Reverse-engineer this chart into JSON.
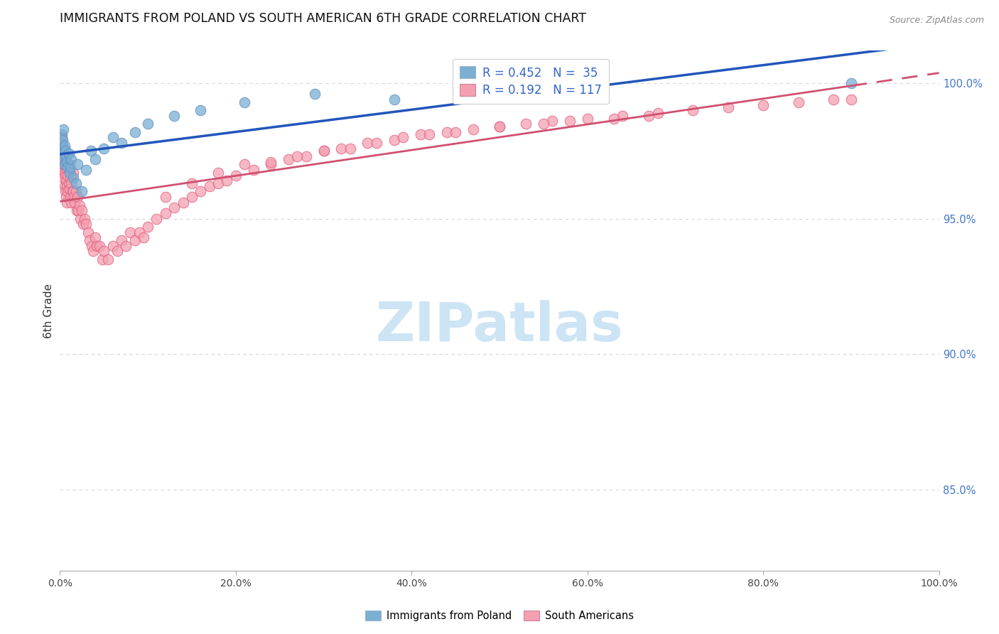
{
  "title": "IMMIGRANTS FROM POLAND VS SOUTH AMERICAN 6TH GRADE CORRELATION CHART",
  "source": "Source: ZipAtlas.com",
  "ylabel": "6th Grade",
  "poland_color": "#7bafd4",
  "poland_edge_color": "#6090c0",
  "south_color": "#f4a0b0",
  "south_edge_color": "#e06080",
  "poland_label": "Immigrants from Poland",
  "south_label": "South Americans",
  "poland_R": 0.452,
  "poland_N": 35,
  "south_R": 0.192,
  "south_N": 117,
  "legend_color": "#3366cc",
  "line_blue": "#2255bb",
  "line_pink": "#d05070",
  "bg_color": "#ffffff",
  "grid_color": "#cccccc",
  "watermark_text": "ZIPatlas",
  "watermark_color": "#cde4f5",
  "xlim": [
    0.0,
    1.0
  ],
  "ylim": [
    0.82,
    1.012
  ],
  "right_yticks": [
    0.85,
    0.9,
    0.95,
    1.0
  ],
  "right_ytick_labels": [
    "85.0%",
    "90.0%",
    "95.0%",
    "100.0%"
  ],
  "xtick_vals": [
    0.0,
    0.2,
    0.4,
    0.6,
    0.8,
    1.0
  ],
  "xtick_labels": [
    "0.0%",
    "20.0%",
    "40.0%",
    "60.0%",
    "80.0%",
    "100.0%"
  ],
  "poland_x": [
    0.001,
    0.002,
    0.002,
    0.003,
    0.003,
    0.004,
    0.004,
    0.005,
    0.005,
    0.006,
    0.007,
    0.008,
    0.009,
    0.01,
    0.011,
    0.012,
    0.013,
    0.015,
    0.018,
    0.02,
    0.025,
    0.03,
    0.035,
    0.04,
    0.05,
    0.06,
    0.07,
    0.085,
    0.1,
    0.13,
    0.16,
    0.21,
    0.29,
    0.38,
    0.9
  ],
  "poland_y": [
    0.978,
    0.974,
    0.981,
    0.972,
    0.979,
    0.976,
    0.983,
    0.97,
    0.977,
    0.975,
    0.973,
    0.971,
    0.969,
    0.974,
    0.967,
    0.969,
    0.972,
    0.965,
    0.963,
    0.97,
    0.96,
    0.968,
    0.975,
    0.972,
    0.976,
    0.98,
    0.978,
    0.982,
    0.985,
    0.988,
    0.99,
    0.993,
    0.996,
    0.994,
    1.0
  ],
  "south_x": [
    0.001,
    0.001,
    0.002,
    0.002,
    0.002,
    0.003,
    0.003,
    0.003,
    0.004,
    0.004,
    0.004,
    0.005,
    0.005,
    0.005,
    0.006,
    0.006,
    0.006,
    0.007,
    0.007,
    0.007,
    0.008,
    0.008,
    0.008,
    0.009,
    0.009,
    0.01,
    0.01,
    0.011,
    0.011,
    0.012,
    0.012,
    0.013,
    0.013,
    0.014,
    0.015,
    0.015,
    0.016,
    0.017,
    0.018,
    0.019,
    0.02,
    0.021,
    0.022,
    0.023,
    0.025,
    0.026,
    0.028,
    0.03,
    0.032,
    0.034,
    0.036,
    0.038,
    0.04,
    0.042,
    0.045,
    0.048,
    0.05,
    0.055,
    0.06,
    0.065,
    0.07,
    0.075,
    0.08,
    0.085,
    0.09,
    0.095,
    0.1,
    0.11,
    0.12,
    0.13,
    0.14,
    0.15,
    0.16,
    0.17,
    0.18,
    0.19,
    0.2,
    0.22,
    0.24,
    0.26,
    0.28,
    0.3,
    0.32,
    0.35,
    0.38,
    0.41,
    0.44,
    0.47,
    0.5,
    0.53,
    0.56,
    0.6,
    0.64,
    0.68,
    0.72,
    0.76,
    0.8,
    0.84,
    0.88,
    0.9,
    0.63,
    0.67,
    0.55,
    0.58,
    0.5,
    0.45,
    0.42,
    0.39,
    0.36,
    0.33,
    0.3,
    0.27,
    0.24,
    0.21,
    0.18,
    0.15,
    0.12
  ],
  "south_y": [
    0.978,
    0.974,
    0.98,
    0.975,
    0.97,
    0.977,
    0.972,
    0.968,
    0.975,
    0.97,
    0.965,
    0.973,
    0.967,
    0.962,
    0.972,
    0.966,
    0.96,
    0.97,
    0.964,
    0.958,
    0.968,
    0.962,
    0.956,
    0.966,
    0.96,
    0.97,
    0.963,
    0.968,
    0.961,
    0.965,
    0.958,
    0.963,
    0.956,
    0.96,
    0.967,
    0.96,
    0.958,
    0.956,
    0.96,
    0.953,
    0.958,
    0.953,
    0.955,
    0.95,
    0.953,
    0.948,
    0.95,
    0.948,
    0.945,
    0.942,
    0.94,
    0.938,
    0.943,
    0.94,
    0.94,
    0.935,
    0.938,
    0.935,
    0.94,
    0.938,
    0.942,
    0.94,
    0.945,
    0.942,
    0.945,
    0.943,
    0.947,
    0.95,
    0.952,
    0.954,
    0.956,
    0.958,
    0.96,
    0.962,
    0.963,
    0.964,
    0.966,
    0.968,
    0.97,
    0.972,
    0.973,
    0.975,
    0.976,
    0.978,
    0.979,
    0.981,
    0.982,
    0.983,
    0.984,
    0.985,
    0.986,
    0.987,
    0.988,
    0.989,
    0.99,
    0.991,
    0.992,
    0.993,
    0.994,
    0.994,
    0.987,
    0.988,
    0.985,
    0.986,
    0.984,
    0.982,
    0.981,
    0.98,
    0.978,
    0.976,
    0.975,
    0.973,
    0.971,
    0.97,
    0.967,
    0.963,
    0.958
  ]
}
